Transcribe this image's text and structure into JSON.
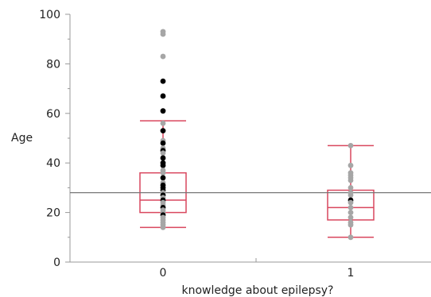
{
  "chart_data": {
    "type": "scatter",
    "title": "",
    "xlabel": "knowledge about epilepsy?",
    "ylabel": "Age",
    "categories": [
      "0",
      "1"
    ],
    "ylim": [
      0,
      100
    ],
    "yticks": [
      0,
      20,
      40,
      60,
      80,
      100
    ],
    "ytick_labels": [
      "0",
      "20",
      "40",
      "60",
      "80",
      "100"
    ],
    "grid": false,
    "reference_line": 28,
    "colors": {
      "box": "#d9475e",
      "point_dark": "#000000",
      "point_light": "#a6a6a6",
      "reference_line": "#777777",
      "axis": "#999999"
    },
    "boxes": [
      {
        "category": "0",
        "whisker_low": 14,
        "q1": 20,
        "median": 25,
        "q3": 36,
        "whisker_high": 57
      },
      {
        "category": "1",
        "whisker_low": 10,
        "q1": 17,
        "median": 22,
        "q3": 29,
        "whisker_high": 47
      }
    ],
    "points": [
      {
        "category": "0",
        "y": 93,
        "tone": "light"
      },
      {
        "category": "0",
        "y": 92,
        "tone": "light"
      },
      {
        "category": "0",
        "y": 83,
        "tone": "light"
      },
      {
        "category": "0",
        "y": 73,
        "tone": "dark"
      },
      {
        "category": "0",
        "y": 67,
        "tone": "dark"
      },
      {
        "category": "0",
        "y": 61,
        "tone": "dark"
      },
      {
        "category": "0",
        "y": 56,
        "tone": "light"
      },
      {
        "category": "0",
        "y": 53,
        "tone": "dark"
      },
      {
        "category": "0",
        "y": 49,
        "tone": "light"
      },
      {
        "category": "0",
        "y": 48,
        "tone": "dark"
      },
      {
        "category": "0",
        "y": 46,
        "tone": "light"
      },
      {
        "category": "0",
        "y": 45,
        "tone": "dark"
      },
      {
        "category": "0",
        "y": 44,
        "tone": "light"
      },
      {
        "category": "0",
        "y": 42,
        "tone": "dark"
      },
      {
        "category": "0",
        "y": 40,
        "tone": "dark"
      },
      {
        "category": "0",
        "y": 39,
        "tone": "dark"
      },
      {
        "category": "0",
        "y": 37,
        "tone": "light"
      },
      {
        "category": "0",
        "y": 36,
        "tone": "light"
      },
      {
        "category": "0",
        "y": 34,
        "tone": "dark"
      },
      {
        "category": "0",
        "y": 32,
        "tone": "light"
      },
      {
        "category": "0",
        "y": 31,
        "tone": "dark"
      },
      {
        "category": "0",
        "y": 30,
        "tone": "dark"
      },
      {
        "category": "0",
        "y": 29,
        "tone": "dark"
      },
      {
        "category": "0",
        "y": 28,
        "tone": "light"
      },
      {
        "category": "0",
        "y": 27,
        "tone": "dark"
      },
      {
        "category": "0",
        "y": 26,
        "tone": "light"
      },
      {
        "category": "0",
        "y": 25,
        "tone": "dark"
      },
      {
        "category": "0",
        "y": 24,
        "tone": "light"
      },
      {
        "category": "0",
        "y": 23,
        "tone": "light"
      },
      {
        "category": "0",
        "y": 22,
        "tone": "dark"
      },
      {
        "category": "0",
        "y": 21,
        "tone": "light"
      },
      {
        "category": "0",
        "y": 20,
        "tone": "light"
      },
      {
        "category": "0",
        "y": 19,
        "tone": "dark"
      },
      {
        "category": "0",
        "y": 18,
        "tone": "light"
      },
      {
        "category": "0",
        "y": 17,
        "tone": "light"
      },
      {
        "category": "0",
        "y": 16,
        "tone": "light"
      },
      {
        "category": "0",
        "y": 15,
        "tone": "light"
      },
      {
        "category": "0",
        "y": 14,
        "tone": "light"
      },
      {
        "category": "1",
        "y": 47,
        "tone": "light"
      },
      {
        "category": "1",
        "y": 39,
        "tone": "light"
      },
      {
        "category": "1",
        "y": 36,
        "tone": "light"
      },
      {
        "category": "1",
        "y": 35,
        "tone": "light"
      },
      {
        "category": "1",
        "y": 34,
        "tone": "light"
      },
      {
        "category": "1",
        "y": 33,
        "tone": "light"
      },
      {
        "category": "1",
        "y": 30,
        "tone": "light"
      },
      {
        "category": "1",
        "y": 28,
        "tone": "light"
      },
      {
        "category": "1",
        "y": 27,
        "tone": "light"
      },
      {
        "category": "1",
        "y": 25,
        "tone": "dark"
      },
      {
        "category": "1",
        "y": 24,
        "tone": "light"
      },
      {
        "category": "1",
        "y": 22,
        "tone": "light"
      },
      {
        "category": "1",
        "y": 20,
        "tone": "light"
      },
      {
        "category": "1",
        "y": 18,
        "tone": "light"
      },
      {
        "category": "1",
        "y": 16,
        "tone": "light"
      },
      {
        "category": "1",
        "y": 15,
        "tone": "light"
      },
      {
        "category": "1",
        "y": 10,
        "tone": "light"
      }
    ]
  }
}
